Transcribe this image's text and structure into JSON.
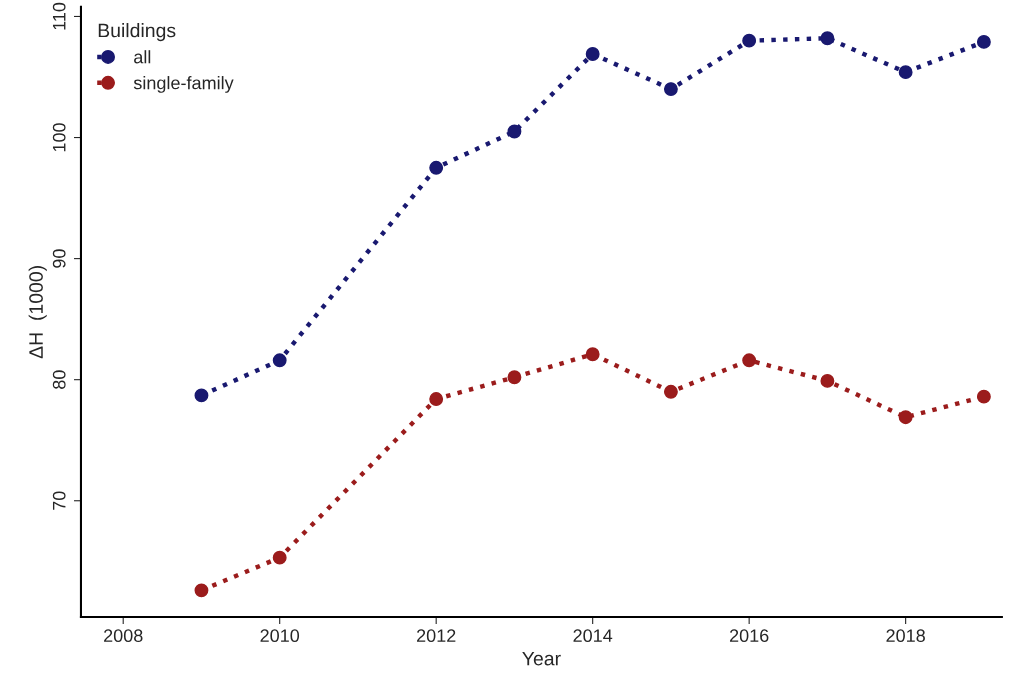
{
  "chart_data": {
    "type": "line",
    "xlabel": "Year",
    "ylabel": "ΔH  (1000)",
    "legend_title": "Buildings",
    "x": [
      2009,
      2010,
      2012,
      2013,
      2014,
      2015,
      2016,
      2017,
      2018,
      2019
    ],
    "series": [
      {
        "name": "all",
        "color": "#191970",
        "values": [
          78.7,
          81.6,
          97.5,
          100.5,
          106.9,
          104.0,
          108.0,
          108.2,
          105.4,
          107.9
        ]
      },
      {
        "name": "single-family",
        "color": "#9b1c1c",
        "values": [
          62.6,
          65.3,
          78.4,
          80.2,
          82.1,
          79.0,
          81.6,
          79.9,
          76.9,
          78.6
        ]
      }
    ],
    "xlim": [
      2007.46,
      2019.23
    ],
    "xticks": [
      2008,
      2010,
      2012,
      2014,
      2016,
      2018
    ],
    "ylim": [
      60.4,
      110.8
    ],
    "yticks": [
      70,
      80,
      90,
      100,
      110
    ],
    "grid": false,
    "legend": "top left",
    "marker": "circle",
    "line_style": "dotted"
  }
}
